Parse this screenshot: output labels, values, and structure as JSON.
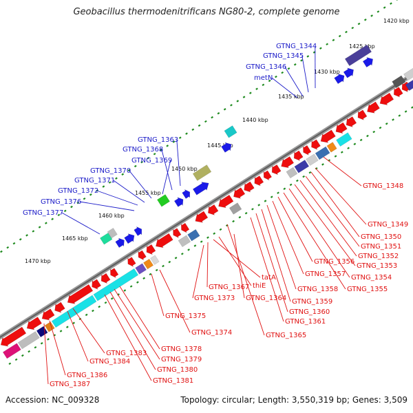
{
  "title": "Geobacillus thermodenitrificans NG80-2, complete genome",
  "footer": {
    "accession": "Accession: NC_009328",
    "topology": "Topology: circular; Length: 3,550,319 bp; Genes: 3,509"
  },
  "colors": {
    "forward_label": "#1a1ac8",
    "reverse_label": "#e01010",
    "backbone": "#888888",
    "tick": "#1e8a1e"
  },
  "kbp_ticks": [
    "1420 kbp",
    "1425 kbp",
    "1430 kbp",
    "1435 kbp",
    "1440 kbp",
    "1445 kbp",
    "1450 kbp",
    "1455 kbp",
    "1460 kbp",
    "1465 kbp",
    "1470 kbp"
  ],
  "forward_labels": [
    "GTNG_1344",
    "GTNG_1345",
    "GTNG_1346",
    "metN",
    "GTNG_1363",
    "GTNG_1368",
    "GTNG_1369",
    "GTNG_1370",
    "GTNG_1371",
    "GTNG_1372",
    "GTNG_1376",
    "GTNG_1377"
  ],
  "reverse_labels": [
    "GTNG_1348",
    "GTNG_1349",
    "GTNG_1350",
    "GTNG_1351",
    "GTNG_1352",
    "GTNG_1353",
    "GTNG_1354",
    "GTNG_1355",
    "GTNG_1356",
    "GTNG_1357",
    "GTNG_1358",
    "GTNG_1359",
    "GTNG_1360",
    "GTNG_1361",
    "GTNG_1365",
    "GTNG_1364",
    "thiE",
    "tatA",
    "GTNG_1367",
    "GTNG_1373",
    "GTNG_1374",
    "GTNG_1375",
    "GTNG_1378",
    "GTNG_1379",
    "GTNG_1380",
    "GTNG_1381",
    "GTNG_1383",
    "GTNG_1384",
    "GTNG_1386",
    "GTNG_1387"
  ]
}
